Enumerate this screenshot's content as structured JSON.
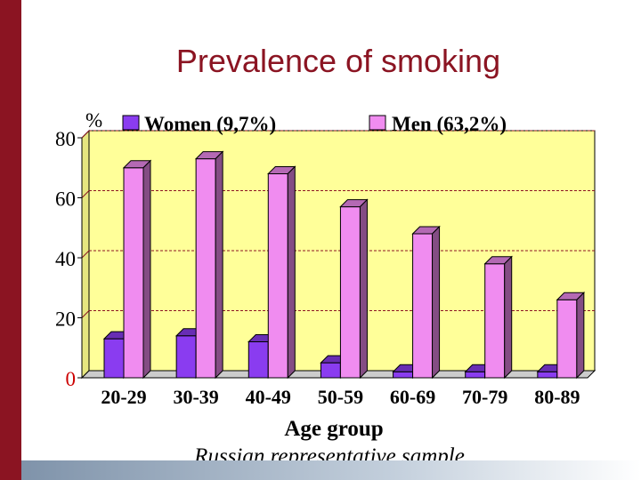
{
  "slide": {
    "title": "Prevalence of smoking",
    "subtitle": "Russian representative sample",
    "colors": {
      "accent_bar": "#8b1422",
      "title": "#8b1422"
    }
  },
  "chart_data": {
    "type": "bar",
    "title": "",
    "ylabel": "%",
    "xlabel": "Age group",
    "categories": [
      "20-29",
      "30-39",
      "40-49",
      "50-59",
      "60-69",
      "70-79",
      "80-89"
    ],
    "series": [
      {
        "name": "Women (9,7%)",
        "color": "#8a3cf0",
        "values": [
          13,
          14,
          12,
          5,
          2,
          2,
          2
        ]
      },
      {
        "name": "Men (63,2%)",
        "color": "#f08cf0",
        "values": [
          70,
          73,
          68,
          57,
          48,
          38,
          26
        ]
      }
    ],
    "ylim": [
      0,
      80
    ],
    "yticks": [
      "0",
      "20",
      "40",
      "60",
      "80"
    ],
    "grid": true,
    "legend": "top",
    "plot_background": "#ffff99"
  }
}
